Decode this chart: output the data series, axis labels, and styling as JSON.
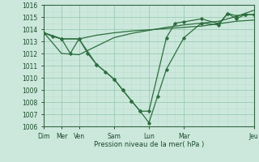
{
  "background_color": "#cce8dc",
  "grid_color_major": "#99ccb3",
  "grid_color_minor": "#bbddd0",
  "line_color": "#2d6e3e",
  "xlabel": "Pression niveau de la mer( hPa )",
  "ylim": [
    1006,
    1016
  ],
  "yticks": [
    1006,
    1007,
    1008,
    1009,
    1010,
    1011,
    1012,
    1013,
    1014,
    1015,
    1016
  ],
  "xlim": [
    0,
    12
  ],
  "xtick_positions": [
    0,
    1,
    2,
    4,
    6,
    8,
    12
  ],
  "xtick_labels": [
    "Dim",
    "Mer",
    "Ven",
    "Sam",
    "Lun",
    "Mar",
    "Jeu"
  ],
  "series1_x": [
    0,
    1,
    2,
    3,
    4,
    5,
    6,
    7,
    8,
    9,
    10,
    11,
    12
  ],
  "series1_y": [
    1013.7,
    1013.2,
    1013.2,
    1013.5,
    1013.7,
    1013.85,
    1013.95,
    1014.05,
    1014.15,
    1014.25,
    1014.45,
    1014.65,
    1014.75
  ],
  "series2_x": [
    0,
    1,
    2,
    3,
    4,
    5,
    6,
    7,
    8,
    9,
    10,
    11,
    12
  ],
  "series2_y": [
    1013.7,
    1012.0,
    1011.9,
    1012.6,
    1013.3,
    1013.65,
    1013.9,
    1014.15,
    1014.35,
    1014.5,
    1014.65,
    1015.05,
    1015.55
  ],
  "series3_x": [
    0,
    0.5,
    1,
    1.5,
    2,
    3,
    3.5,
    4,
    4.5,
    5,
    5.5,
    6,
    7,
    7.5,
    8,
    9,
    10,
    10.5,
    11,
    11.5,
    12
  ],
  "series3_y": [
    1013.7,
    1013.4,
    1013.2,
    1012.0,
    1013.2,
    1011.1,
    1010.5,
    1009.9,
    1009.0,
    1008.1,
    1007.25,
    1007.25,
    1013.3,
    1014.5,
    1014.6,
    1014.85,
    1014.45,
    1015.3,
    1015.1,
    1015.2,
    1015.2
  ],
  "series4_x": [
    0,
    1,
    2,
    2.5,
    3,
    4,
    4.5,
    5,
    5.5,
    6,
    6.5,
    7,
    8,
    9,
    10,
    10.5,
    11,
    11.5,
    12
  ],
  "series4_y": [
    1013.7,
    1013.2,
    1013.2,
    1012.0,
    1011.1,
    1009.9,
    1009.0,
    1008.1,
    1007.25,
    1006.3,
    1008.5,
    1010.7,
    1013.3,
    1014.5,
    1014.35,
    1015.3,
    1014.85,
    1015.2,
    1015.2
  ]
}
